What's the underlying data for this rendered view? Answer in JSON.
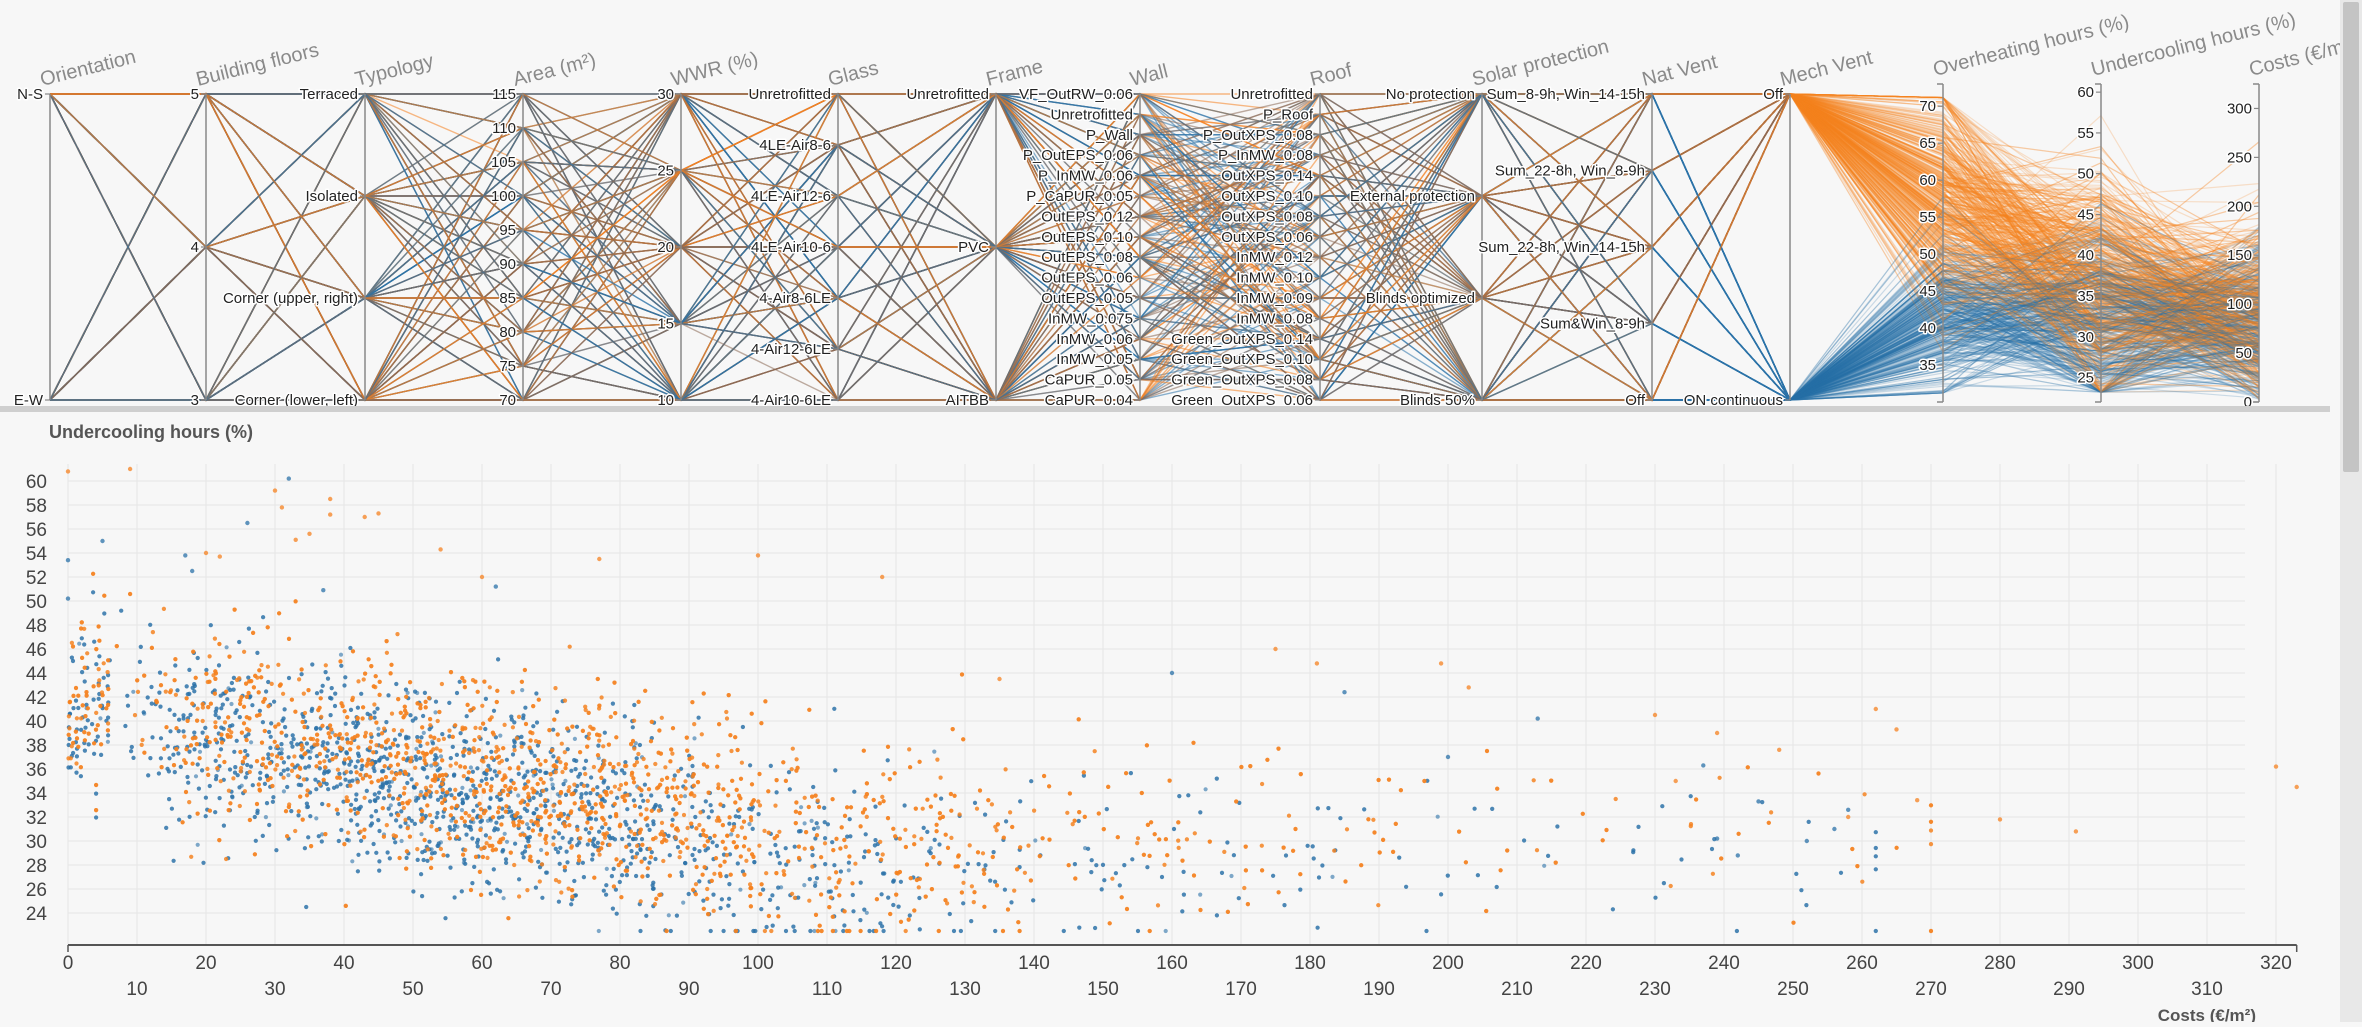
{
  "colors": {
    "series_a": "#f58220",
    "series_b": "#2b72a8",
    "mixed": "#8a6a55",
    "axis": "#888888",
    "grid": "#e6e6e6"
  },
  "chart_data": [
    {
      "type": "parallel_coordinates",
      "title": "",
      "legend": [
        {
          "name": "Mech Vent: Off",
          "color": "#f58220"
        },
        {
          "name": "Mech Vent: ON continuous",
          "color": "#2b72a8"
        }
      ],
      "axes": [
        {
          "name": "Orientation",
          "kind": "categorical",
          "values": [
            "N-S",
            "E-W"
          ]
        },
        {
          "name": "Building floors",
          "kind": "categorical",
          "values": [
            "5",
            "4",
            "3"
          ]
        },
        {
          "name": "Typology",
          "kind": "categorical",
          "values": [
            "Terraced",
            "Isolated",
            "Corner (upper, right)",
            "Corner (lower, left)"
          ]
        },
        {
          "name": "Area (m²)",
          "kind": "numeric",
          "range": [
            70,
            115
          ],
          "ticks": [
            115,
            110,
            105,
            100,
            95,
            90,
            85,
            80,
            75,
            70
          ]
        },
        {
          "name": "WWR (%)",
          "kind": "numeric",
          "range": [
            10,
            30
          ],
          "ticks": [
            30,
            25,
            20,
            15,
            10
          ]
        },
        {
          "name": "Glass",
          "kind": "categorical",
          "values": [
            "Unretrofitted",
            "4LE-Air8-6",
            "4LE-Air12-6",
            "4LE-Air10-6",
            "4-Air8-6LE",
            "4-Air12-6LE",
            "4-Air10-6LE"
          ]
        },
        {
          "name": "Frame",
          "kind": "categorical",
          "values": [
            "Unretrofitted",
            "PVC",
            "AITBB"
          ]
        },
        {
          "name": "Wall",
          "kind": "categorical",
          "values": [
            "VF_OutRW_0.06",
            "Unretrofitted",
            "P_Wall",
            "P_OutEPS_0.06",
            "P_InMW_0.06",
            "P_CaPUR_0.05",
            "OutEPS_0.12",
            "OutEPS_0.10",
            "OutEPS_0.08",
            "OutEPS_0.06",
            "OutEPS_0.05",
            "InMW_0.075",
            "InMW_0.06",
            "InMW_0.05",
            "CaPUR_0.05",
            "CaPUR_0.04"
          ]
        },
        {
          "name": "Roof",
          "kind": "categorical",
          "values": [
            "Unretrofitted",
            "P_Roof",
            "P_OutXPS_0.08",
            "P_InMW_0.08",
            "OutXPS_0.14",
            "OutXPS_0.10",
            "OutXPS_0.08",
            "OutXPS_0.06",
            "InMW_0.12",
            "InMW_0.10",
            "InMW_0.09",
            "InMW_0.08",
            "Green_OutXPS_0.14",
            "Green_OutXPS_0.10",
            "Green_OutXPS_0.08",
            "Green_OutXPS_0.06"
          ]
        },
        {
          "name": "Solar protection",
          "kind": "categorical",
          "values": [
            "No protection",
            "External protection",
            "Blinds optimized",
            "Blinds 50%"
          ]
        },
        {
          "name": "Nat Vent",
          "kind": "categorical",
          "values": [
            "Sum_8-9h, Win_14-15h",
            "Sum_22-8h, Win_8-9h",
            "Sum_22-8h, Win_14-15h",
            "Sum&Win_8-9h",
            "Off"
          ]
        },
        {
          "name": "Mech Vent",
          "kind": "categorical",
          "values": [
            "Off",
            "ON continuous"
          ]
        },
        {
          "name": "Overheating hours (%)",
          "kind": "numeric",
          "range": [
            30,
            73
          ],
          "ticks": [
            70,
            65,
            60,
            55,
            50,
            45,
            40,
            35
          ]
        },
        {
          "name": "Undercooling hours (%)",
          "kind": "numeric",
          "range": [
            22,
            61
          ],
          "ticks": [
            60,
            55,
            50,
            45,
            40,
            35,
            30,
            25
          ]
        },
        {
          "name": "Costs (€/m²)",
          "kind": "numeric",
          "range": [
            0,
            325
          ],
          "ticks": [
            300,
            250,
            200,
            150,
            100,
            50,
            0
          ]
        }
      ],
      "series_profiles": [
        {
          "name": "Off",
          "color": "#f58220",
          "overheating_mean": 58,
          "overheating_sd": 8,
          "undercooling_mean": 36,
          "undercooling_sd": 7,
          "costs_mean": 95,
          "costs_sd": 50
        },
        {
          "name": "ON continuous",
          "color": "#2b72a8",
          "overheating_mean": 42,
          "overheating_sd": 5,
          "undercooling_mean": 32,
          "undercooling_sd": 6,
          "costs_mean": 80,
          "costs_sd": 45
        }
      ]
    },
    {
      "type": "scatter",
      "title": "Undercooling hours (%)",
      "xlabel": "Costs (€/m²)",
      "ylabel": "Undercooling hours (%)",
      "xlim": [
        0,
        323
      ],
      "ylim": [
        21,
        61
      ],
      "grid": true,
      "xticks_upper": [
        0,
        20,
        40,
        60,
        80,
        100,
        120,
        140,
        160,
        180,
        200,
        220,
        240,
        260,
        280,
        300,
        320
      ],
      "xticks_lower": [
        10,
        30,
        50,
        70,
        90,
        110,
        130,
        150,
        170,
        190,
        210,
        230,
        250,
        270,
        290,
        310
      ],
      "yticks": [
        60,
        58,
        56,
        54,
        52,
        50,
        48,
        46,
        44,
        42,
        40,
        38,
        36,
        34,
        32,
        30,
        28,
        26,
        24
      ],
      "series": [
        {
          "name": "Mech Vent Off",
          "color": "#f58220",
          "cloud": {
            "count": 3800,
            "x_min": 0,
            "x_peak": 70,
            "x_max": 270,
            "y_at_x0": 42,
            "y_slope": -0.11,
            "y_floor": 30,
            "y_sd": 4.2
          },
          "outliers": [
            [
              0,
              60.8
            ],
            [
              9,
              61
            ],
            [
              30,
              59.2
            ],
            [
              31,
              57.8
            ],
            [
              38,
              58.5
            ],
            [
              38,
              57.2
            ],
            [
              43,
              57
            ],
            [
              45,
              57.3
            ],
            [
              20,
              54
            ],
            [
              22,
              53.7
            ],
            [
              35,
              55.6
            ],
            [
              33,
              55.1
            ],
            [
              54,
              54.3
            ],
            [
              60,
              52
            ],
            [
              77,
              53.5
            ],
            [
              100,
              53.8
            ],
            [
              118,
              52
            ],
            [
              135,
              43.5
            ],
            [
              175,
              46
            ],
            [
              181,
              44.8
            ],
            [
              199,
              44.8
            ],
            [
              203,
              42.8
            ],
            [
              230,
              40.5
            ],
            [
              248,
              37.6
            ],
            [
              258,
              32
            ],
            [
              265,
              39.3
            ],
            [
              268,
              33.4
            ],
            [
              280,
              31.8
            ],
            [
              291,
              30.8
            ],
            [
              320,
              36.2
            ],
            [
              323,
              34.5
            ],
            [
              262,
              41
            ],
            [
              239,
              39
            ],
            [
              233,
              35
            ]
          ]
        },
        {
          "name": "Mech Vent ON continuous",
          "color": "#2b72a8",
          "cloud": {
            "count": 2700,
            "x_min": 0,
            "x_peak": 60,
            "x_max": 262,
            "y_at_x0": 41,
            "y_slope": -0.12,
            "y_floor": 27.5,
            "y_sd": 4.0
          },
          "outliers": [
            [
              0,
              53.4
            ],
            [
              0,
              50.2
            ],
            [
              5,
              55
            ],
            [
              32,
              60.2
            ],
            [
              26,
              56.5
            ],
            [
              17,
              53.8
            ],
            [
              18,
              52.5
            ],
            [
              37,
              50.9
            ],
            [
              62,
              51.2
            ],
            [
              160,
              44
            ],
            [
              185,
              42.4
            ],
            [
              200,
              37
            ],
            [
              213,
              40.2
            ],
            [
              245,
              33.3
            ],
            [
              258,
              32.6
            ],
            [
              252,
              30
            ],
            [
              256,
              31
            ],
            [
              242,
              28.8
            ],
            [
              239,
              30.2
            ],
            [
              237,
              36.3
            ]
          ]
        }
      ]
    }
  ]
}
